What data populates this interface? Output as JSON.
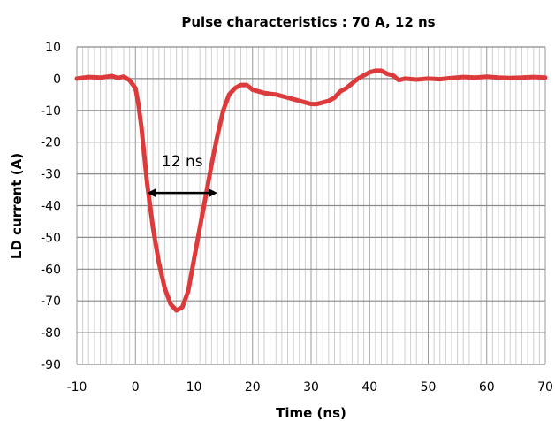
{
  "chart_data": {
    "type": "line",
    "title": "Pulse characteristics : 70 A, 12 ns",
    "xlabel": "Time (ns)",
    "ylabel": "LD  current  (A)",
    "xlim": [
      -10,
      70
    ],
    "ylim": [
      -90,
      10
    ],
    "x_ticks": [
      -10,
      0,
      10,
      20,
      30,
      40,
      50,
      60,
      70
    ],
    "y_ticks": [
      10,
      0,
      -10,
      -20,
      -30,
      -40,
      -50,
      -60,
      -70,
      -80,
      -90
    ],
    "x_minor_step": 1,
    "grid": true,
    "series": [
      {
        "color": "#dd3b3b",
        "x": [
          -10,
          -8,
          -6,
          -4,
          -3,
          -2,
          -1,
          0,
          0.5,
          1,
          1.5,
          2,
          3,
          4,
          5,
          6,
          7,
          8,
          9,
          10,
          11,
          12,
          13,
          14,
          15,
          16,
          17,
          18,
          19,
          20,
          21,
          22,
          23,
          24,
          25,
          26,
          27,
          28,
          29,
          30,
          31,
          32,
          33,
          34,
          35,
          36,
          37,
          38,
          39,
          40,
          41,
          42,
          43,
          44,
          45,
          46,
          48,
          50,
          52,
          54,
          56,
          58,
          60,
          62,
          64,
          66,
          68,
          70
        ],
        "y": [
          0,
          0.5,
          0.3,
          0.8,
          0.2,
          0.6,
          -0.5,
          -3,
          -8,
          -15,
          -24,
          -33,
          -47,
          -58,
          -66,
          -71,
          -73,
          -72,
          -67,
          -57,
          -47,
          -37,
          -27,
          -18,
          -10,
          -5,
          -3,
          -2,
          -2,
          -3.5,
          -4,
          -4.5,
          -4.8,
          -5,
          -5.5,
          -6,
          -6.5,
          -7,
          -7.5,
          -8,
          -8,
          -7.5,
          -7,
          -6,
          -4,
          -3,
          -1.5,
          0,
          1,
          2,
          2.5,
          2.5,
          1.5,
          1,
          -0.5,
          0,
          -0.3,
          0,
          -0.2,
          0.2,
          0.5,
          0.3,
          0.6,
          0.3,
          0.2,
          0.3,
          0.5,
          0.3
        ]
      }
    ],
    "annotation": {
      "text": "12 ns",
      "x_start": 2,
      "x_end": 14,
      "y": -36
    }
  }
}
